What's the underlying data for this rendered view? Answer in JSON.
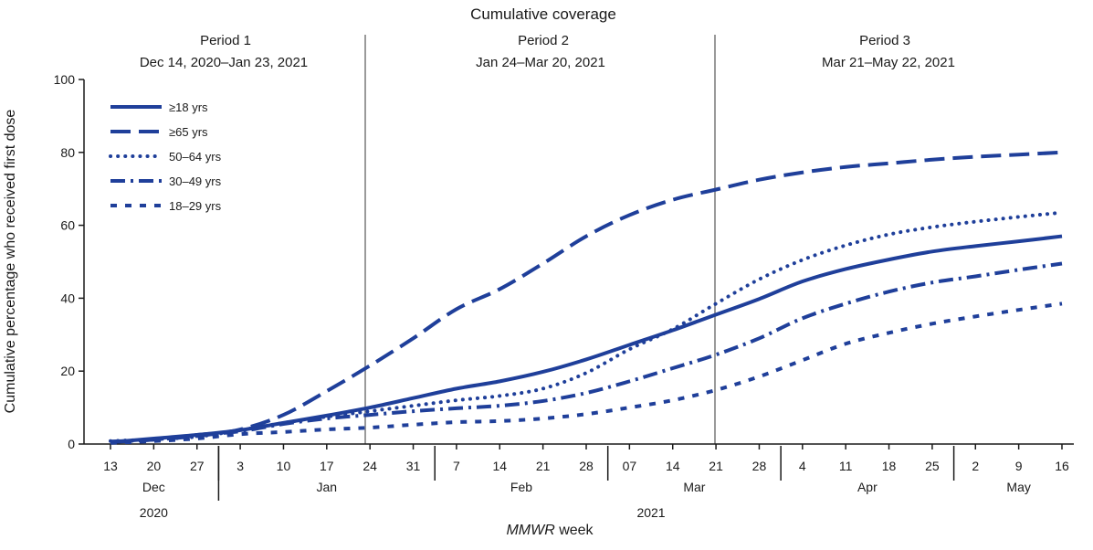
{
  "title": "Cumulative coverage",
  "periods": [
    {
      "name": "Period 1",
      "range": "Dec 14, 2020–Jan 23, 2021",
      "start_week": "13",
      "end_week": "24"
    },
    {
      "name": "Period 2",
      "range": "Jan 24–Mar 20, 2021",
      "start_week": "24",
      "end_week": "21"
    },
    {
      "name": "Period 3",
      "range": "Mar 21–May 22, 2021",
      "start_week": "21",
      "end_week": "16"
    }
  ],
  "x_ticks": [
    "13",
    "20",
    "27",
    "3",
    "10",
    "17",
    "24",
    "31",
    "7",
    "14",
    "21",
    "28",
    "07",
    "14",
    "21",
    "28",
    "4",
    "11",
    "18",
    "25",
    "2",
    "9",
    "16"
  ],
  "months": [
    {
      "label": "Dec",
      "from": 0,
      "to": 2
    },
    {
      "label": "Jan",
      "from": 3,
      "to": 7
    },
    {
      "label": "Feb",
      "from": 8,
      "to": 11
    },
    {
      "label": "Mar",
      "from": 12,
      "to": 15
    },
    {
      "label": "Apr",
      "from": 16,
      "to": 19
    },
    {
      "label": "May",
      "from": 20,
      "to": 22
    }
  ],
  "years": [
    {
      "label": "2020",
      "from": 0,
      "to": 2
    },
    {
      "label": "2021",
      "from": 3,
      "to": 22
    }
  ],
  "xlabel_italic": "MMWR",
  "xlabel_rest": " week",
  "ylabel": "Cumulative percentage who received first dose",
  "chart_data": {
    "type": "line",
    "title": "Cumulative coverage",
    "xlabel": "MMWR week",
    "ylabel": "Cumulative percentage who received first dose",
    "ylim": [
      0,
      100
    ],
    "y_ticks": [
      0,
      20,
      40,
      60,
      80,
      100
    ],
    "legend_position": "top-left",
    "grid": false,
    "x": [
      "2020-12-13",
      "2020-12-20",
      "2020-12-27",
      "2021-01-03",
      "2021-01-10",
      "2021-01-17",
      "2021-01-24",
      "2021-01-31",
      "2021-02-07",
      "2021-02-14",
      "2021-02-21",
      "2021-02-28",
      "2021-03-07",
      "2021-03-14",
      "2021-03-21",
      "2021-03-28",
      "2021-04-04",
      "2021-04-11",
      "2021-04-18",
      "2021-04-25",
      "2021-05-02",
      "2021-05-09",
      "2021-05-16"
    ],
    "series": [
      {
        "name": "≥18 yrs",
        "style": "solid",
        "values": [
          0.5,
          1.5,
          2.5,
          3.8,
          5.8,
          7.8,
          10.0,
          12.6,
          15.2,
          17.2,
          19.8,
          23.2,
          27.2,
          31.2,
          35.5,
          39.8,
          44.6,
          48.0,
          50.6,
          52.8,
          54.3,
          55.6,
          57.0
        ]
      },
      {
        "name": "≥65 yrs",
        "style": "dashed",
        "values": [
          0.5,
          1.2,
          2.2,
          4.0,
          8.0,
          14.5,
          21.5,
          29.0,
          37.0,
          42.5,
          49.5,
          57.0,
          62.8,
          67.0,
          69.8,
          72.5,
          74.5,
          76.0,
          77.0,
          78.0,
          78.8,
          79.4,
          80.0
        ]
      },
      {
        "name": "50–64 yrs",
        "style": "dotted",
        "values": [
          0.8,
          1.3,
          2.0,
          3.8,
          5.8,
          7.5,
          9.0,
          10.5,
          12.0,
          13.2,
          15.2,
          19.5,
          26.0,
          31.5,
          38.5,
          45.2,
          50.5,
          54.5,
          57.5,
          59.5,
          61.0,
          62.3,
          63.5
        ]
      },
      {
        "name": "30–49 yrs",
        "style": "dashdot",
        "values": [
          0.7,
          1.2,
          2.5,
          3.5,
          5.5,
          7.0,
          8.0,
          9.0,
          9.8,
          10.5,
          11.8,
          14.0,
          17.2,
          20.8,
          24.5,
          29.0,
          34.5,
          38.5,
          41.8,
          44.3,
          46.0,
          47.8,
          49.5
        ]
      },
      {
        "name": "18–29 yrs",
        "style": "widedot",
        "values": [
          0.3,
          0.8,
          1.5,
          2.7,
          3.3,
          4.0,
          4.5,
          5.3,
          6.0,
          6.3,
          7.0,
          8.2,
          10.0,
          12.0,
          14.8,
          18.5,
          23.0,
          27.5,
          30.5,
          33.0,
          35.0,
          36.8,
          38.5
        ]
      }
    ],
    "colors": {
      "line": "#1f3f9a",
      "divider": "#9a9a9a",
      "axis": "#1a1a1a"
    }
  }
}
